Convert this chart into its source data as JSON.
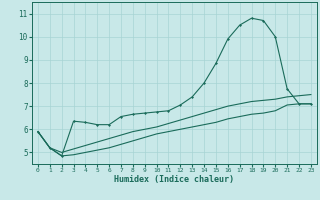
{
  "title": "",
  "xlabel": "Humidex (Indice chaleur)",
  "ylabel": "",
  "background_color": "#c8e8e8",
  "grid_color": "#a8d4d4",
  "line_color": "#1a6b5a",
  "xlim": [
    -0.5,
    23.5
  ],
  "ylim": [
    4.5,
    11.5
  ],
  "yticks": [
    5,
    6,
    7,
    8,
    9,
    10,
    11
  ],
  "xticks": [
    0,
    1,
    2,
    3,
    4,
    5,
    6,
    7,
    8,
    9,
    10,
    11,
    12,
    13,
    14,
    15,
    16,
    17,
    18,
    19,
    20,
    21,
    22,
    23
  ],
  "curve1_x": [
    0,
    1,
    2,
    3,
    4,
    5,
    6,
    7,
    8,
    9,
    10,
    11,
    12,
    13,
    14,
    15,
    16,
    17,
    18,
    19,
    20,
    21,
    22,
    23
  ],
  "curve1_y": [
    5.9,
    5.2,
    4.85,
    4.9,
    5.0,
    5.1,
    5.2,
    5.35,
    5.5,
    5.65,
    5.8,
    5.9,
    6.0,
    6.1,
    6.2,
    6.3,
    6.45,
    6.55,
    6.65,
    6.7,
    6.8,
    7.05,
    7.1,
    7.1
  ],
  "curve2_x": [
    0,
    1,
    2,
    3,
    4,
    5,
    6,
    7,
    8,
    9,
    10,
    11,
    12,
    13,
    14,
    15,
    16,
    17,
    18,
    19,
    20,
    21,
    22,
    23
  ],
  "curve2_y": [
    5.9,
    5.2,
    5.0,
    5.15,
    5.3,
    5.45,
    5.6,
    5.75,
    5.9,
    6.0,
    6.1,
    6.25,
    6.4,
    6.55,
    6.7,
    6.85,
    7.0,
    7.1,
    7.2,
    7.25,
    7.3,
    7.4,
    7.45,
    7.5
  ],
  "curve3_x": [
    0,
    1,
    2,
    3,
    4,
    5,
    6,
    7,
    8,
    9,
    10,
    11,
    12,
    13,
    14,
    15,
    16,
    17,
    18,
    19,
    20,
    21,
    22,
    23
  ],
  "curve3_y": [
    5.9,
    5.2,
    4.85,
    6.35,
    6.3,
    6.2,
    6.2,
    6.55,
    6.65,
    6.7,
    6.75,
    6.8,
    7.05,
    7.4,
    8.0,
    8.85,
    9.9,
    10.5,
    10.8,
    10.7,
    10.0,
    7.75,
    7.1,
    7.1
  ]
}
